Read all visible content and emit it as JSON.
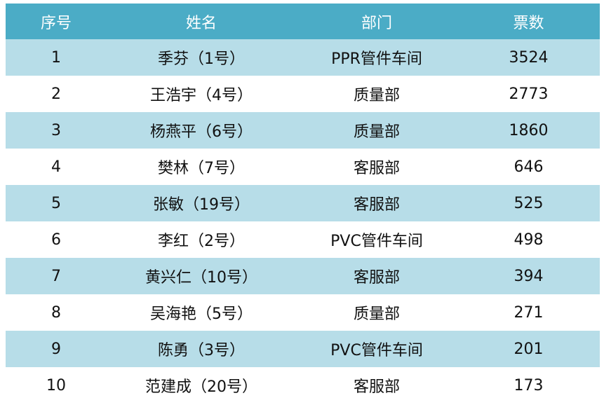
{
  "headers": [
    "序号",
    "姓名",
    "部门",
    "票数"
  ],
  "colors": {
    "header_bg": "#4BACC6",
    "band_bg": "#B7DDE8",
    "header_text": "#FFFFFF"
  },
  "rows": [
    [
      "1",
      "季芬（1号）",
      "PPR管件车间",
      "3524"
    ],
    [
      "2",
      "王浩宇（4号）",
      "质量部",
      "2773"
    ],
    [
      "3",
      "杨燕平（6号）",
      "质量部",
      "1860"
    ],
    [
      "4",
      "樊林（7号）",
      "客服部",
      "646"
    ],
    [
      "5",
      "张敏（19号）",
      "客服部",
      "525"
    ],
    [
      "6",
      "李红（2号）",
      "PVC管件车间",
      "498"
    ],
    [
      "7",
      "黄兴仁（10号）",
      "客服部",
      "394"
    ],
    [
      "8",
      "吴海艳（5号）",
      "质量部",
      "271"
    ],
    [
      "9",
      "陈勇（3号）",
      "PVC管件车间",
      "201"
    ],
    [
      "10",
      "范建成（20号）",
      "客服部",
      "173"
    ]
  ]
}
